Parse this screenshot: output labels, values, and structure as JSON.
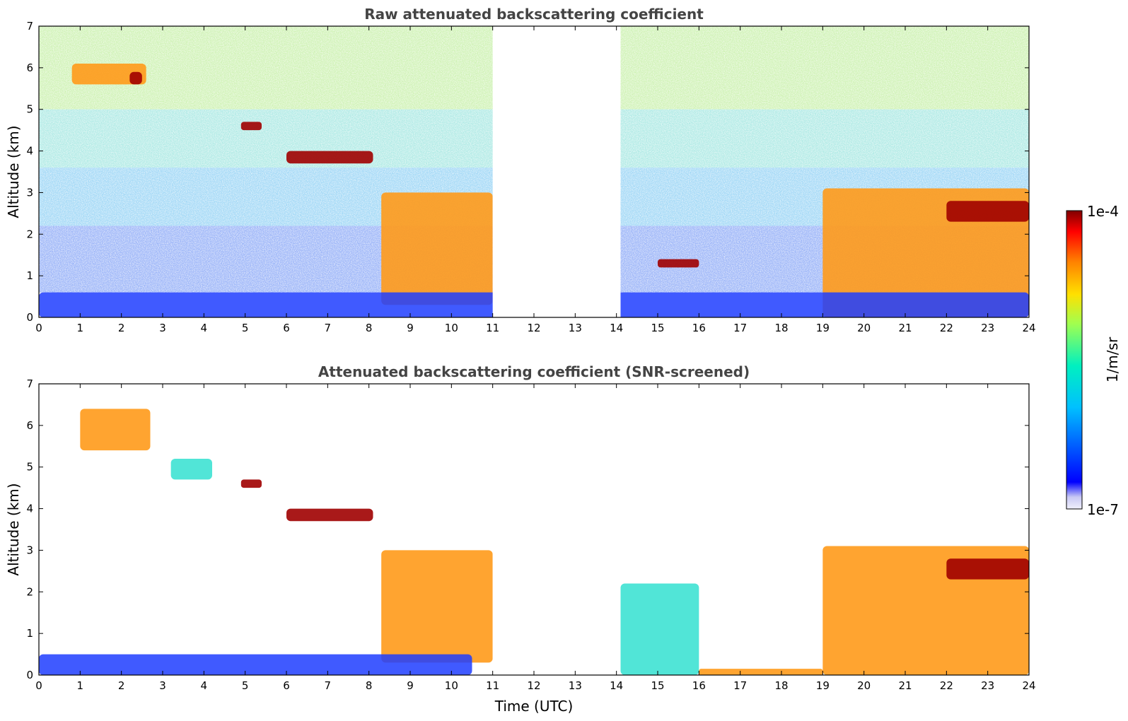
{
  "chart_data": [
    {
      "type": "heatmap",
      "title": "Raw attenuated backscattering coefficient",
      "xlabel": "",
      "ylabel": "Altitude (km)",
      "xlim": [
        0,
        24
      ],
      "ylim": [
        0,
        7
      ],
      "xticks": [
        "0",
        "1",
        "2",
        "3",
        "4",
        "5",
        "6",
        "7",
        "8",
        "9",
        "10",
        "11",
        "12",
        "13",
        "14",
        "15",
        "16",
        "17",
        "18",
        "19",
        "20",
        "21",
        "22",
        "23",
        "24"
      ],
      "yticks": [
        "0",
        "1",
        "2",
        "3",
        "4",
        "5",
        "6",
        "7"
      ],
      "no_data_intervals": [
        [
          11.0,
          14.1
        ]
      ],
      "features": [
        {
          "x": [
            0.8,
            2.6
          ],
          "y": [
            5.6,
            6.1
          ],
          "level": "high"
        },
        {
          "x": [
            2.2,
            2.5
          ],
          "y": [
            5.6,
            5.9
          ],
          "level": "max"
        },
        {
          "x": [
            4.9,
            5.4
          ],
          "y": [
            4.5,
            4.7
          ],
          "level": "max"
        },
        {
          "x": [
            6.0,
            8.1
          ],
          "y": [
            3.7,
            4.0
          ],
          "level": "max"
        },
        {
          "x": [
            8.3,
            11.0
          ],
          "y": [
            0.3,
            3.0
          ],
          "level": "high"
        },
        {
          "x": [
            15.0,
            16.0
          ],
          "y": [
            1.2,
            1.4
          ],
          "level": "max"
        },
        {
          "x": [
            19.0,
            24.0
          ],
          "y": [
            0.0,
            3.1
          ],
          "level": "high"
        },
        {
          "x": [
            22.0,
            24.0
          ],
          "y": [
            2.3,
            2.8
          ],
          "level": "max"
        },
        {
          "x": [
            0.0,
            24.0
          ],
          "y": [
            0.0,
            0.6
          ],
          "level": "low"
        }
      ]
    },
    {
      "type": "heatmap",
      "title": "Attenuated backscattering coefficient (SNR-screened)",
      "xlabel": "Time (UTC)",
      "ylabel": "Altitude (km)",
      "xlim": [
        0,
        24
      ],
      "ylim": [
        0,
        7
      ],
      "xticks": [
        "0",
        "1",
        "2",
        "3",
        "4",
        "5",
        "6",
        "7",
        "8",
        "9",
        "10",
        "11",
        "12",
        "13",
        "14",
        "15",
        "16",
        "17",
        "18",
        "19",
        "20",
        "21",
        "22",
        "23",
        "24"
      ],
      "yticks": [
        "0",
        "1",
        "2",
        "3",
        "4",
        "5",
        "6",
        "7"
      ],
      "no_data_intervals": [
        [
          11.0,
          14.1
        ]
      ],
      "features": [
        {
          "x": [
            1.0,
            2.7
          ],
          "y": [
            5.4,
            6.4
          ],
          "level": "high"
        },
        {
          "x": [
            3.2,
            4.2
          ],
          "y": [
            4.7,
            5.2
          ],
          "level": "mid"
        },
        {
          "x": [
            4.9,
            5.4
          ],
          "y": [
            4.5,
            4.7
          ],
          "level": "max"
        },
        {
          "x": [
            6.0,
            8.1
          ],
          "y": [
            3.7,
            4.0
          ],
          "level": "max"
        },
        {
          "x": [
            8.3,
            11.0
          ],
          "y": [
            0.3,
            3.0
          ],
          "level": "high"
        },
        {
          "x": [
            14.1,
            16.0
          ],
          "y": [
            0.0,
            2.2
          ],
          "level": "mid"
        },
        {
          "x": [
            16.0,
            19.0
          ],
          "y": [
            0.0,
            0.15
          ],
          "level": "high"
        },
        {
          "x": [
            19.0,
            24.0
          ],
          "y": [
            0.0,
            3.1
          ],
          "level": "high"
        },
        {
          "x": [
            22.0,
            24.0
          ],
          "y": [
            2.3,
            2.8
          ],
          "level": "max"
        },
        {
          "x": [
            0.0,
            10.5
          ],
          "y": [
            0.0,
            0.5
          ],
          "level": "low"
        }
      ]
    }
  ],
  "colorbar": {
    "label": "1/m/sr",
    "max_label": "1e-4",
    "min_label": "1e-7",
    "colormap": "jet",
    "colors": [
      "#e8e8f8",
      "#0000ff",
      "#00bfff",
      "#00ffb0",
      "#b0ff40",
      "#ffe000",
      "#ff8000",
      "#ff0000",
      "#8b0000"
    ]
  }
}
